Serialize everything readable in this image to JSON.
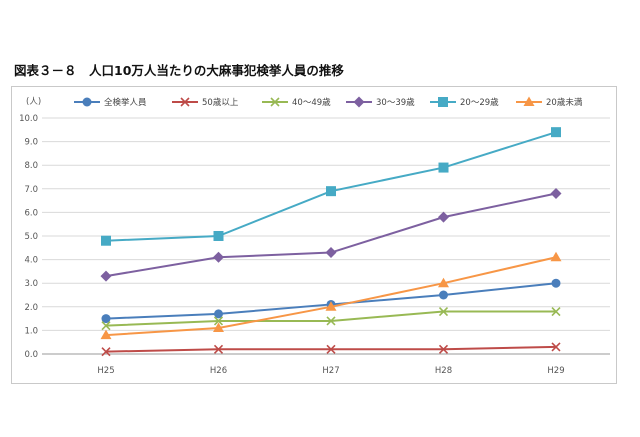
{
  "figure": {
    "title": "図表３－８　人口10万人当たりの大麻事犯検挙人員の推移"
  },
  "chart_data": {
    "type": "line",
    "title": "図表３－８　人口10万人当たりの大麻事犯検挙人員の推移",
    "ylabel": "(人)",
    "xlabel": "",
    "categories": [
      "H25",
      "H26",
      "H27",
      "H28",
      "H29"
    ],
    "ylim": [
      0,
      10
    ],
    "yticks": [
      "0.0",
      "1.0",
      "2.0",
      "3.0",
      "4.0",
      "5.0",
      "6.0",
      "7.0",
      "8.0",
      "9.0",
      "10.0"
    ],
    "grid": true,
    "legend_position": "top",
    "series": [
      {
        "name": "全検挙人員",
        "values": [
          1.5,
          1.7,
          2.1,
          2.5,
          3.0
        ],
        "color": "#4a7ebb",
        "marker": "circle"
      },
      {
        "name": "50歳以上",
        "values": [
          0.1,
          0.2,
          0.2,
          0.2,
          0.3
        ],
        "color": "#be4b48",
        "marker": "x"
      },
      {
        "name": "40～49歳",
        "values": [
          1.2,
          1.4,
          1.4,
          1.8,
          1.8
        ],
        "color": "#98b954",
        "marker": "x"
      },
      {
        "name": "30～39歳",
        "values": [
          3.3,
          4.1,
          4.3,
          5.8,
          6.8
        ],
        "color": "#7d60a0",
        "marker": "diamond"
      },
      {
        "name": "20～29歳",
        "values": [
          4.8,
          5.0,
          6.9,
          7.9,
          9.4
        ],
        "color": "#46aac5",
        "marker": "square"
      },
      {
        "name": "20歳未満",
        "values": [
          0.8,
          1.1,
          2.0,
          3.0,
          4.1
        ],
        "color": "#f79646",
        "marker": "triangle"
      }
    ]
  }
}
